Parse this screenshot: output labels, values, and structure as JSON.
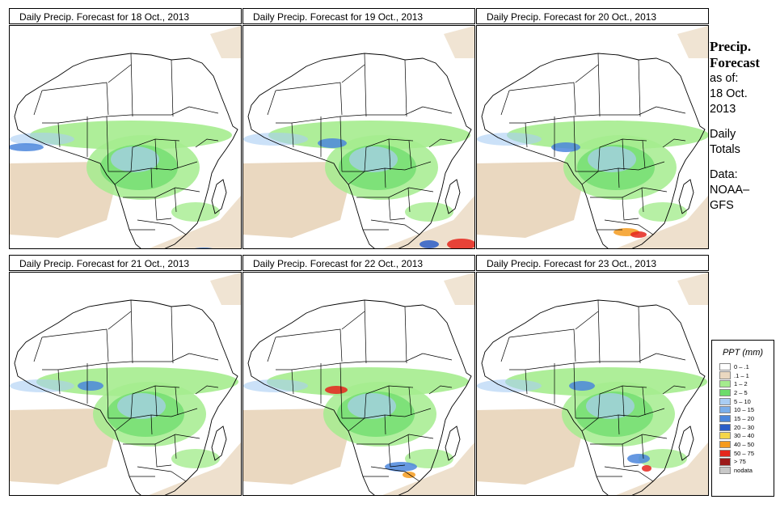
{
  "panels": [
    {
      "title": "Daily Precip. Forecast for  18 Oct., 2013"
    },
    {
      "title": "Daily Precip. Forecast for  19 Oct., 2013"
    },
    {
      "title": "Daily Precip. Forecast for  20 Oct., 2013"
    },
    {
      "title": "Daily Precip. Forecast for  21 Oct., 2013"
    },
    {
      "title": "Daily Precip. Forecast for  22 Oct., 2013"
    },
    {
      "title": "Daily Precip. Forecast for  23 Oct., 2013"
    }
  ],
  "sidebar": {
    "heading1": "Precip.",
    "heading2": "Forecast",
    "asof": "as of:",
    "date1": "18 Oct.",
    "date2": "2013",
    "daily": "Daily",
    "totals": "Totals",
    "data": "Data:",
    "src1": "NOAA–",
    "src2": "GFS"
  },
  "legend": {
    "title": "PPT (mm)",
    "items": [
      {
        "label": "0 – .1",
        "color": "#ffffff"
      },
      {
        "label": ".1 – 1",
        "color": "#ead8c0"
      },
      {
        "label": "1 – 2",
        "color": "#a5ec8e"
      },
      {
        "label": "2 – 5",
        "color": "#6cdc6c"
      },
      {
        "label": "5 – 10",
        "color": "#a9cdf3"
      },
      {
        "label": "10 – 15",
        "color": "#7aaeea"
      },
      {
        "label": "15 – 20",
        "color": "#4b86dc"
      },
      {
        "label": "20 – 30",
        "color": "#2b5dc7"
      },
      {
        "label": "30 – 40",
        "color": "#f5d648"
      },
      {
        "label": "40 – 50",
        "color": "#f59b1e"
      },
      {
        "label": "50 – 75",
        "color": "#e5261c"
      },
      {
        "label": "> 75",
        "color": "#9c1a1a"
      },
      {
        "label": "nodata",
        "color": "#c8c8c8"
      }
    ]
  }
}
